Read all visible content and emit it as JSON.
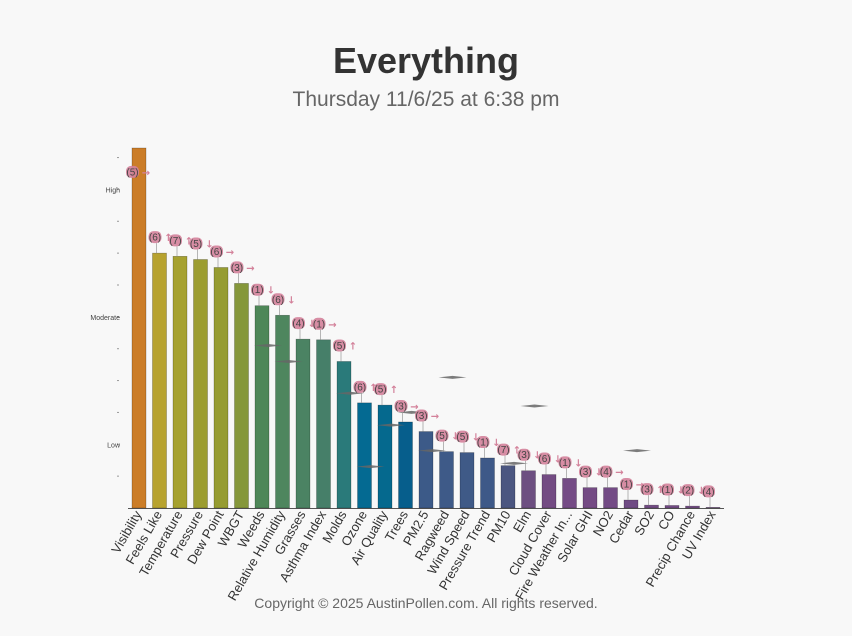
{
  "title": "Everything",
  "subtitle": "Thursday 11/6/25 at 6:38 pm",
  "footer": "Copyright © 2025 AustinPollen.com.  All rights reserved.",
  "chart_data": {
    "type": "bar",
    "ylim": [
      0,
      11.3
    ],
    "y_levels": [
      {
        "label": "Low",
        "value": 2
      },
      {
        "label": "Moderate",
        "value": 6
      },
      {
        "label": "High",
        "value": 10
      }
    ],
    "categories": [
      "Visibility",
      "Feels Like",
      "Temperature",
      "Pressure",
      "Dew Point",
      "WBGT",
      "Weeds",
      "Relative Humidity",
      "Grasses",
      "Asthma Index",
      "Molds",
      "Ozone",
      "Air Quality",
      "Trees",
      "PM2.5",
      "Ragweed",
      "Wind Speed",
      "Pressure Trend",
      "PM10",
      "Elm",
      "Cloud Cover",
      "Fire Weather In...",
      "Solar GHI",
      "NO2",
      "Cedar",
      "SO2",
      "CO",
      "Precip Chance",
      "UV Index"
    ],
    "values": [
      11.3,
      8.0,
      7.9,
      7.8,
      7.55,
      7.05,
      6.35,
      6.05,
      5.3,
      5.28,
      4.6,
      3.3,
      3.23,
      2.7,
      2.4,
      1.77,
      1.74,
      1.57,
      1.33,
      1.17,
      1.05,
      0.93,
      0.64,
      0.64,
      0.25,
      0.09,
      0.08,
      0.06,
      0.02
    ],
    "badges": [
      {
        "text": "(5)",
        "arrow": "→"
      },
      {
        "text": "(6)",
        "arrow": "↑"
      },
      {
        "text": "(7)",
        "arrow": "↑"
      },
      {
        "text": "(5)",
        "arrow": "↓"
      },
      {
        "text": "(6)",
        "arrow": "→"
      },
      {
        "text": "(3)",
        "arrow": "→"
      },
      {
        "text": "(1)",
        "arrow": "↓"
      },
      {
        "text": "(6)",
        "arrow": "↓"
      },
      {
        "text": "(4)",
        "arrow": "↓"
      },
      {
        "text": "(1)",
        "arrow": "→"
      },
      {
        "text": "(5)",
        "arrow": "↑"
      },
      {
        "text": "(6)",
        "arrow": "↑"
      },
      {
        "text": "(5)",
        "arrow": "↑"
      },
      {
        "text": "(3)",
        "arrow": "→"
      },
      {
        "text": "(3)",
        "arrow": "→"
      },
      {
        "text": "(5)",
        "arrow": "↓"
      },
      {
        "text": "(5)",
        "arrow": "↓"
      },
      {
        "text": "(1)",
        "arrow": "↓"
      },
      {
        "text": "(7)",
        "arrow": "↑"
      },
      {
        "text": "(3)",
        "arrow": "↓"
      },
      {
        "text": "(6)",
        "arrow": "↓"
      },
      {
        "text": "(1)",
        "arrow": "↓"
      },
      {
        "text": "(3)",
        "arrow": "↓"
      },
      {
        "text": "(4)",
        "arrow": "→"
      },
      {
        "text": "(1)",
        "arrow": "→"
      },
      {
        "text": "(3)",
        "arrow": "↑"
      },
      {
        "text": "(1)",
        "arrow": "↓"
      },
      {
        "text": "(2)",
        "arrow": "↓"
      },
      {
        "text": "(4)",
        "arrow": ""
      }
    ],
    "markers": [
      {
        "category": "Weeds",
        "value": 5.1
      },
      {
        "category": "Relative Humidity",
        "value": 4.6
      },
      {
        "category": "Molds",
        "value": 3.6
      },
      {
        "category": "Ozone",
        "value": 1.3
      },
      {
        "category": "Air Quality",
        "value": 2.6
      },
      {
        "category": "Trees",
        "value": 3.0
      },
      {
        "category": "PM2.5",
        "value": 1.8
      },
      {
        "category": "Ragweed",
        "value": 4.1
      },
      {
        "category": "PM10",
        "value": 1.4
      },
      {
        "category": "Elm",
        "value": 3.2
      },
      {
        "category": "Cedar",
        "value": 1.8
      }
    ],
    "colors": [
      "#cb7d28",
      "#b7a22e",
      "#a6a12f",
      "#9c9d30",
      "#969c31",
      "#85973a",
      "#4e8758",
      "#4e865e",
      "#4b8363",
      "#467f69",
      "#2a7a7a",
      "#046a92",
      "#05698e",
      "#065e8c",
      "#3c5a88",
      "#3e5a88",
      "#3f5a87",
      "#3e5988",
      "#4b5680",
      "#6d4f81",
      "#734b83",
      "#744b85",
      "#744b84",
      "#734b85",
      "#6f4b84",
      "#724b84",
      "#724b84",
      "#724b84",
      "#724b84"
    ],
    "badge_color": "#d3819a"
  }
}
